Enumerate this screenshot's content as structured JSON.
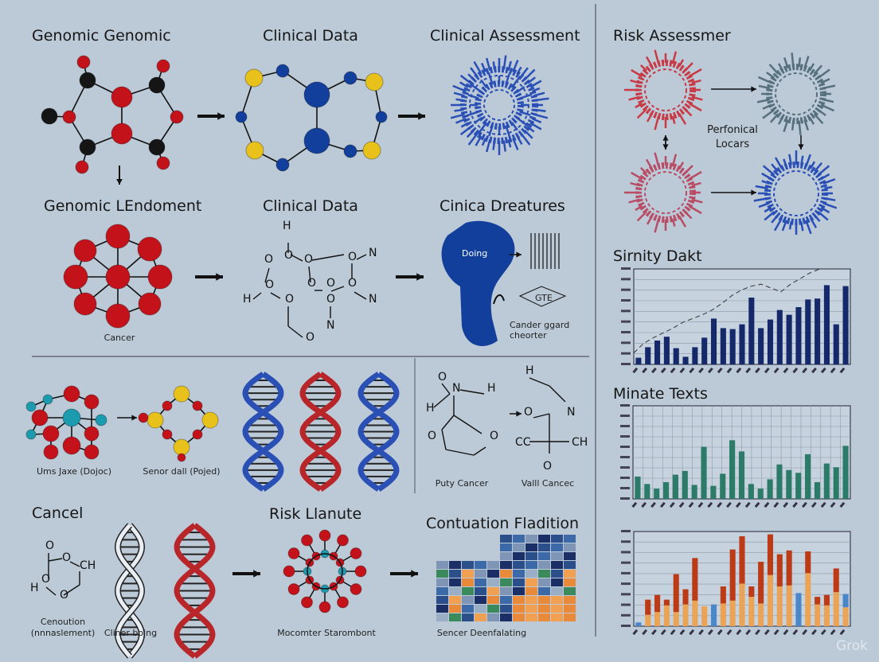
{
  "headings": {
    "genomic_genomic": "Genomic Genomic",
    "clinical_data_1": "Clinical Data",
    "clinical_assessment": "Clinical Assessment",
    "risk_assessmer": "Risk Assessmer",
    "genomic_lendoment": "Genomic LEndoment",
    "clinical_data_2": "Clinical Data",
    "cinica_dreatures": "Cinica Dreatures",
    "cancel": "Cancel",
    "risk_llanute": "Risk Llanute",
    "contuation_fladition": "Contuation Fladition",
    "sirnity_dakt": "Sirnity Dakt",
    "minate_texts": "Minate Texts"
  },
  "labels": {
    "cancer": "Cancer",
    "doing": "Doing",
    "gte": "GTE",
    "cander_ggard": "Cander ggard",
    "cheorter": "cheorter",
    "ums_jaxe": "Ums Jaxe (Dojoc)",
    "senor_dall": "Senor dall (Pojed)",
    "puty_cancer": "Puty Cancer",
    "valll_cancec": "Valll Cancec",
    "cenoution": "Cenoution",
    "nnnaslement": "(nnnaslement)",
    "cliner_bojng": "Cliner bojng",
    "mocomter": "Mocomter Starombont",
    "sencer": "Sencer Deenfalating",
    "perfonical": "Perfonical",
    "locars": "Locars"
  },
  "chem_text": {
    "h": "H",
    "o": "O",
    "n": "N",
    "ch": "CH",
    "cc": "CC"
  },
  "watermark": "Grok",
  "colors": {
    "background": "#bccad7",
    "atom_red": "#c4121a",
    "atom_black": "#151515",
    "atom_yellow": "#e8c21a",
    "atom_blue": "#123f9c",
    "atom_teal": "#1c9aae",
    "helix_blue": "#2a4fb5",
    "helix_red": "#b8262a",
    "bar_navy": "#14286a",
    "bar_green": "#2c7a68",
    "bar_orange": "#eba456",
    "bar_red": "#bd3a17",
    "bar_blue": "#4a86c8"
  },
  "chart_data": [
    {
      "type": "bar",
      "title": "Sirnity Dakt",
      "ylim": [
        0,
        100
      ],
      "grid": true,
      "values": [
        7,
        18,
        25,
        29,
        17,
        8,
        18,
        28,
        48,
        38,
        37,
        42,
        70,
        38,
        47,
        57,
        52,
        60,
        68,
        69,
        83,
        42,
        82
      ],
      "trend_line": [
        12,
        22,
        28,
        33,
        38,
        44,
        48,
        52,
        57,
        64,
        72,
        78,
        82,
        84,
        80,
        76,
        84,
        90,
        96,
        100
      ],
      "color": "#14286a"
    },
    {
      "type": "bar",
      "title": "Minate Texts",
      "ylim": [
        0,
        100
      ],
      "grid": true,
      "values": [
        24,
        16,
        11,
        18,
        26,
        30,
        15,
        56,
        14,
        27,
        63,
        51,
        16,
        11,
        21,
        37,
        31,
        28,
        48,
        18,
        38,
        34,
        57
      ],
      "color": "#2c7a68"
    },
    {
      "type": "bar",
      "title": "",
      "stacked": true,
      "ylim": [
        0,
        100
      ],
      "grid": true,
      "series": [
        {
          "values": [
            4,
            12,
            15,
            22,
            15,
            23,
            27,
            21,
            23,
            24,
            27,
            45,
            31,
            24,
            54,
            42,
            43,
            35,
            56,
            23,
            22,
            36,
            20
          ],
          "color": "#eba456"
        },
        {
          "values": [
            0,
            16,
            18,
            6,
            40,
            16,
            45,
            0,
            0,
            18,
            54,
            50,
            11,
            44,
            43,
            34,
            37,
            0,
            23,
            8,
            11,
            25,
            14
          ],
          "color": "#bd3a17"
        }
      ],
      "blue_bars": [
        0,
        8,
        17,
        22
      ]
    }
  ]
}
